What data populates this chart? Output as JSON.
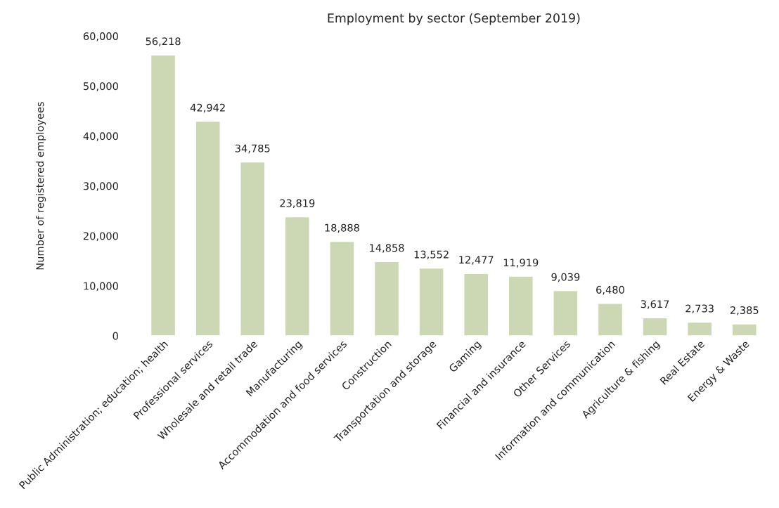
{
  "chart_data": {
    "type": "bar",
    "title": "Employment by sector (September 2019)",
    "ylabel": "Number of registered employees",
    "categories": [
      "Public Administration; education; health",
      "Professional services",
      "Wholesale and retail trade",
      "Manufacturing",
      "Accommodation and food services",
      "Construction",
      "Transportation and storage",
      "Gaming",
      "Financial and insurance",
      "Other Services",
      "Information and communication",
      "Agriculture & fishing",
      "Real Estate",
      "Energy & Waste"
    ],
    "values": [
      56218,
      42942,
      34785,
      23819,
      18888,
      14858,
      13552,
      12477,
      11919,
      9039,
      6480,
      3617,
      2733,
      2385
    ],
    "color": "#ccd8b4",
    "ylim": [
      0,
      60000
    ],
    "yticks": [
      {
        "value": 0,
        "label": "0"
      },
      {
        "value": 10000,
        "label": "10,000"
      },
      {
        "value": 20000,
        "label": "20,000"
      },
      {
        "value": 30000,
        "label": "30,000"
      },
      {
        "value": 40000,
        "label": "40,000"
      },
      {
        "value": 50000,
        "label": "50,000"
      },
      {
        "value": 60000,
        "label": "60,000"
      }
    ],
    "value_labels": [
      "56,218",
      "42,942",
      "34,785",
      "23,819",
      "18,888",
      "14,858",
      "13,552",
      "12,477",
      "11,919",
      "9,039",
      "6,480",
      "3,617",
      "2,733",
      "2,385"
    ],
    "grid": false
  }
}
